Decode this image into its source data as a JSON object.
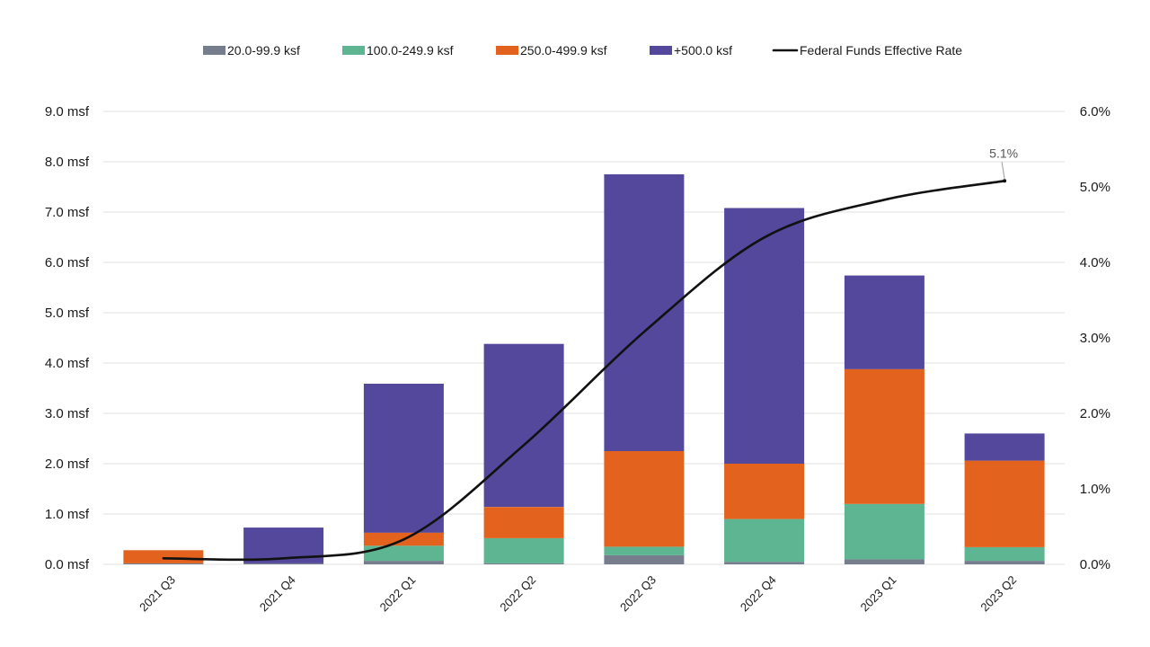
{
  "chart_data": {
    "type": "bar",
    "stacked": true,
    "categories": [
      "2021 Q3",
      "2021 Q4",
      "2022 Q1",
      "2022 Q2",
      "2022 Q3",
      "2022 Q4",
      "2023 Q1",
      "2023 Q2"
    ],
    "series": [
      {
        "name": "20.0-99.9 ksf",
        "color": "#767e8e",
        "values": [
          0.02,
          0.02,
          0.07,
          0.02,
          0.18,
          0.05,
          0.1,
          0.07
        ]
      },
      {
        "name": "100.0-249.9 ksf",
        "color": "#5db591",
        "values": [
          0.0,
          0.0,
          0.3,
          0.5,
          0.17,
          0.85,
          1.1,
          0.27
        ]
      },
      {
        "name": "250.0-499.9 ksf",
        "color": "#e2621e",
        "values": [
          0.26,
          0.0,
          0.26,
          0.62,
          1.9,
          1.1,
          2.68,
          1.72
        ]
      },
      {
        "name": "+500.0 ksf",
        "color": "#53489c",
        "values": [
          0.0,
          0.71,
          2.96,
          3.24,
          5.5,
          5.08,
          1.86,
          0.54
        ]
      }
    ],
    "line_series": {
      "name": "Federal Funds Effective Rate",
      "color": "#111111",
      "values": [
        0.08,
        0.08,
        0.33,
        1.58,
        3.08,
        4.33,
        4.83,
        5.08
      ],
      "end_label": "5.1%"
    },
    "yleft": {
      "min": 0,
      "max": 9,
      "step": 1,
      "ticks": [
        "0.0 msf",
        "1.0 msf",
        "2.0 msf",
        "3.0 msf",
        "4.0 msf",
        "5.0 msf",
        "6.0 msf",
        "7.0 msf",
        "8.0 msf",
        "9.0 msf"
      ]
    },
    "yright": {
      "min": 0,
      "max": 6,
      "step": 1,
      "ticks": [
        "0.0%",
        "1.0%",
        "2.0%",
        "3.0%",
        "4.0%",
        "5.0%",
        "6.0%"
      ]
    },
    "grid": true,
    "legend_position": "top-center"
  }
}
